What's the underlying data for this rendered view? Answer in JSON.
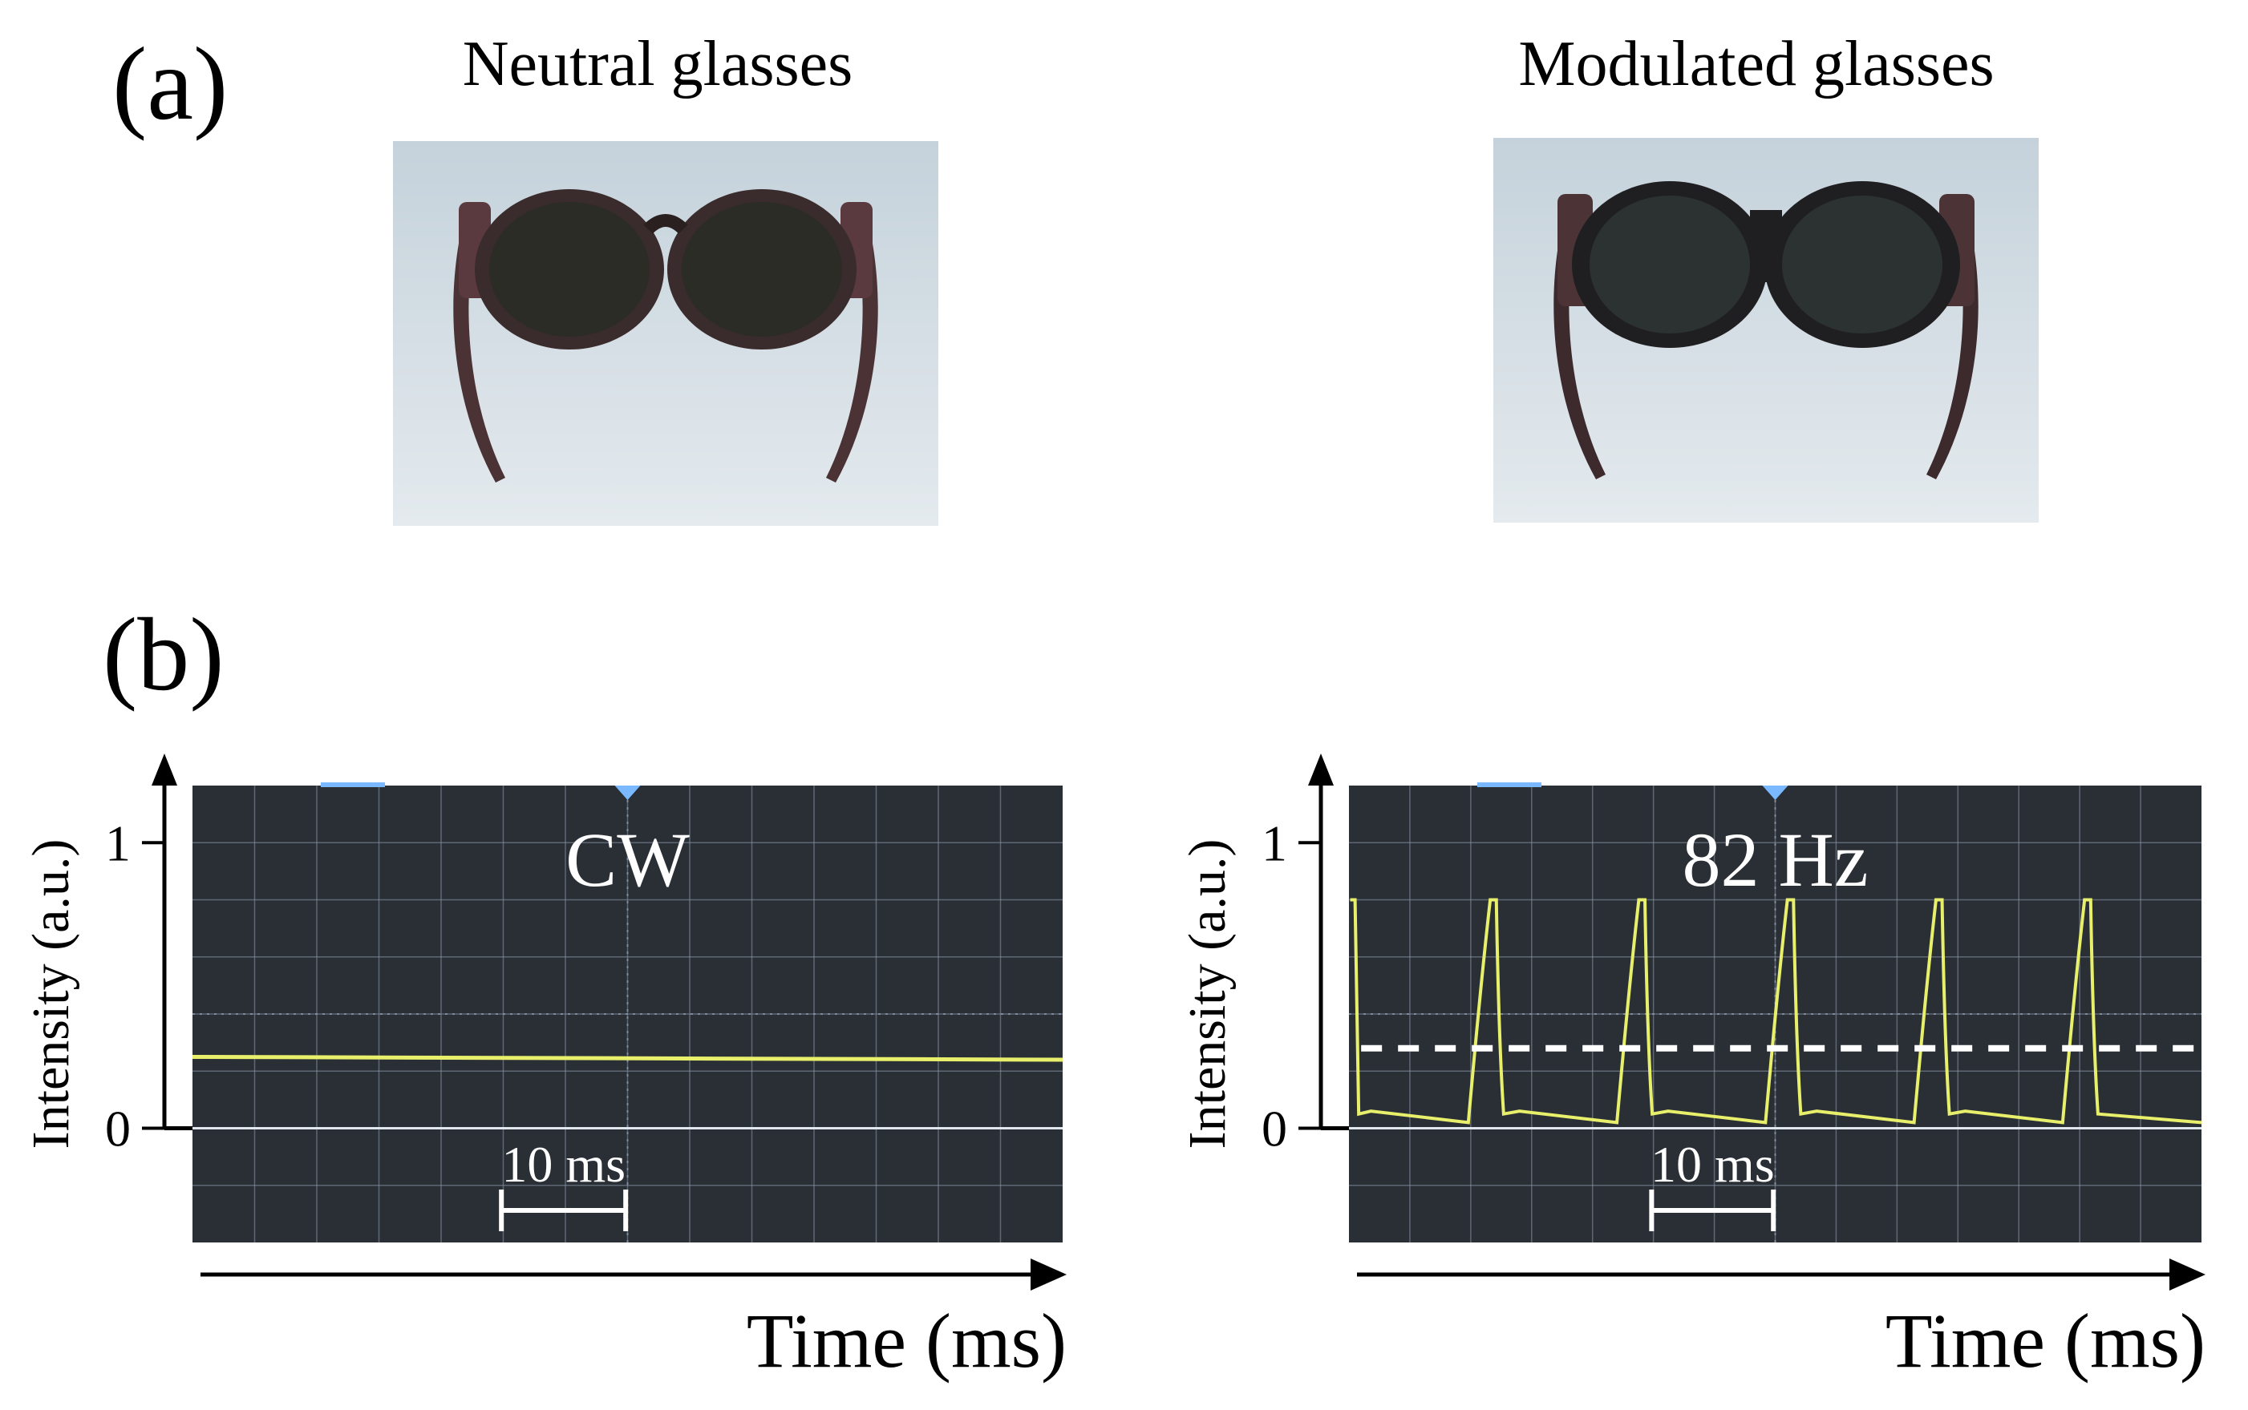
{
  "panel_a": {
    "label": "(a)",
    "left_title": "Neutral glasses",
    "right_title": "Modulated glasses"
  },
  "panel_b": {
    "label": "(b)"
  },
  "colors": {
    "screen_bg": "#2a2f36",
    "grid": "#8a96a8",
    "trace": "#e8ef6a",
    "marker": "#7ab8ff",
    "photo_bg_top": "#c9d6de",
    "photo_bg_bottom": "#e3e9ed"
  },
  "chart_data": [
    {
      "type": "line",
      "name": "neutral",
      "annotation": "CW",
      "xlabel": "Time (ms)",
      "ylabel": "Intensity (a.u.)",
      "yticks": [
        "0",
        "1"
      ],
      "ylim": [
        -0.4,
        1.2
      ],
      "scale_bar_label": "10 ms",
      "scale_bar_ms": 10,
      "series": [
        {
          "name": "intensity",
          "x": [
            0,
            70
          ],
          "y": [
            0.25,
            0.24
          ]
        }
      ]
    },
    {
      "type": "line",
      "name": "modulated",
      "annotation": "82 Hz",
      "xlabel": "Time (ms)",
      "ylabel": "Intensity (a.u.)",
      "yticks": [
        "0",
        "1"
      ],
      "ylim": [
        -0.4,
        1.2
      ],
      "scale_bar_label": "10 ms",
      "scale_bar_ms": 10,
      "frequency_hz": 82,
      "period_ms": 12.2,
      "high": 0.8,
      "low": 0.02,
      "mean_level": 0.28,
      "series": [
        {
          "name": "intensity",
          "x": [
            0,
            70
          ],
          "y": [
            0.8,
            0.0
          ]
        }
      ]
    }
  ]
}
